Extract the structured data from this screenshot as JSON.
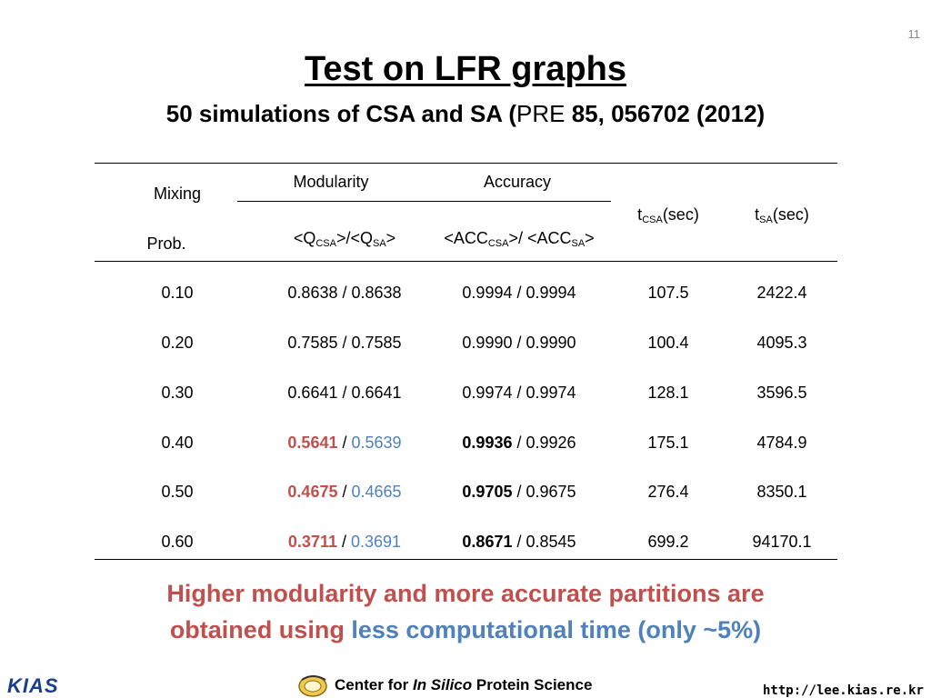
{
  "slide_number": "11",
  "title": "Test on LFR graphs",
  "subtitle": {
    "part1": "50 simulations of CSA and SA (",
    "journal": "PRE",
    "part2": " 85, 056702 (2012)"
  },
  "table": {
    "header": {
      "mixing": "Mixing",
      "prob": "Prob.",
      "modularity": "Modularity",
      "accuracy": "Accuracy",
      "mod_formula": {
        "a": "<Q",
        "sub1": "CSA",
        "b": ">/<Q",
        "sub2": "SA",
        "c": ">"
      },
      "acc_formula": {
        "a": "<ACC",
        "sub1": "CSA",
        "b": ">/ <ACC",
        "sub2": "SA",
        "c": ">"
      },
      "t_csa": {
        "t": "t",
        "sub": "CSA",
        "unit": "(sec)"
      },
      "t_sa": {
        "t": "t",
        "sub": "SA",
        "unit": "(sec)"
      }
    },
    "rows": [
      {
        "prob": "0.10",
        "q_csa": "0.8638",
        "q_sa": "0.8638",
        "acc_csa": "0.9994",
        "acc_sa": "0.9994",
        "t_csa": "107.5",
        "t_sa": "2422.4"
      },
      {
        "prob": "0.20",
        "q_csa": "0.7585",
        "q_sa": "0.7585",
        "acc_csa": "0.9990",
        "acc_sa": "0.9990",
        "t_csa": "100.4",
        "t_sa": "4095.3"
      },
      {
        "prob": "0.30",
        "q_csa": "0.6641",
        "q_sa": "0.6641",
        "acc_csa": "0.9974",
        "acc_sa": "0.9974",
        "t_csa": "128.1",
        "t_sa": "3596.5"
      },
      {
        "prob": "0.40",
        "q_csa": "0.5641",
        "q_sa": "0.5639",
        "acc_csa": "0.9936",
        "acc_sa": "0.9926",
        "t_csa": "175.1",
        "t_sa": "4784.9"
      },
      {
        "prob": "0.50",
        "q_csa": "0.4675",
        "q_sa": "0.4665",
        "acc_csa": "0.9705",
        "acc_sa": "0.9675",
        "t_csa": "276.4",
        "t_sa": "8350.1"
      },
      {
        "prob": "0.60",
        "q_csa": "0.3711",
        "q_sa": "0.3691",
        "acc_csa": "0.8671",
        "acc_sa": "0.8545",
        "t_csa": "699.2",
        "t_sa": "94170.1"
      }
    ],
    "separator": " / "
  },
  "conclusion": {
    "line1": "Higher modularity and more accurate partitions are",
    "line2_red": "obtained using ",
    "line2_blue": "less computational time (only ~5%)"
  },
  "footer": {
    "kias_logo": "KIAS",
    "center_a": "Center for ",
    "center_italic": "In Silico",
    "center_b": " Protein Science",
    "url": "http://lee.kias.re.kr"
  },
  "colors": {
    "highlight_red": "#c0504d",
    "highlight_blue": "#4f81bd",
    "kias_blue": "#1a3e8c"
  }
}
